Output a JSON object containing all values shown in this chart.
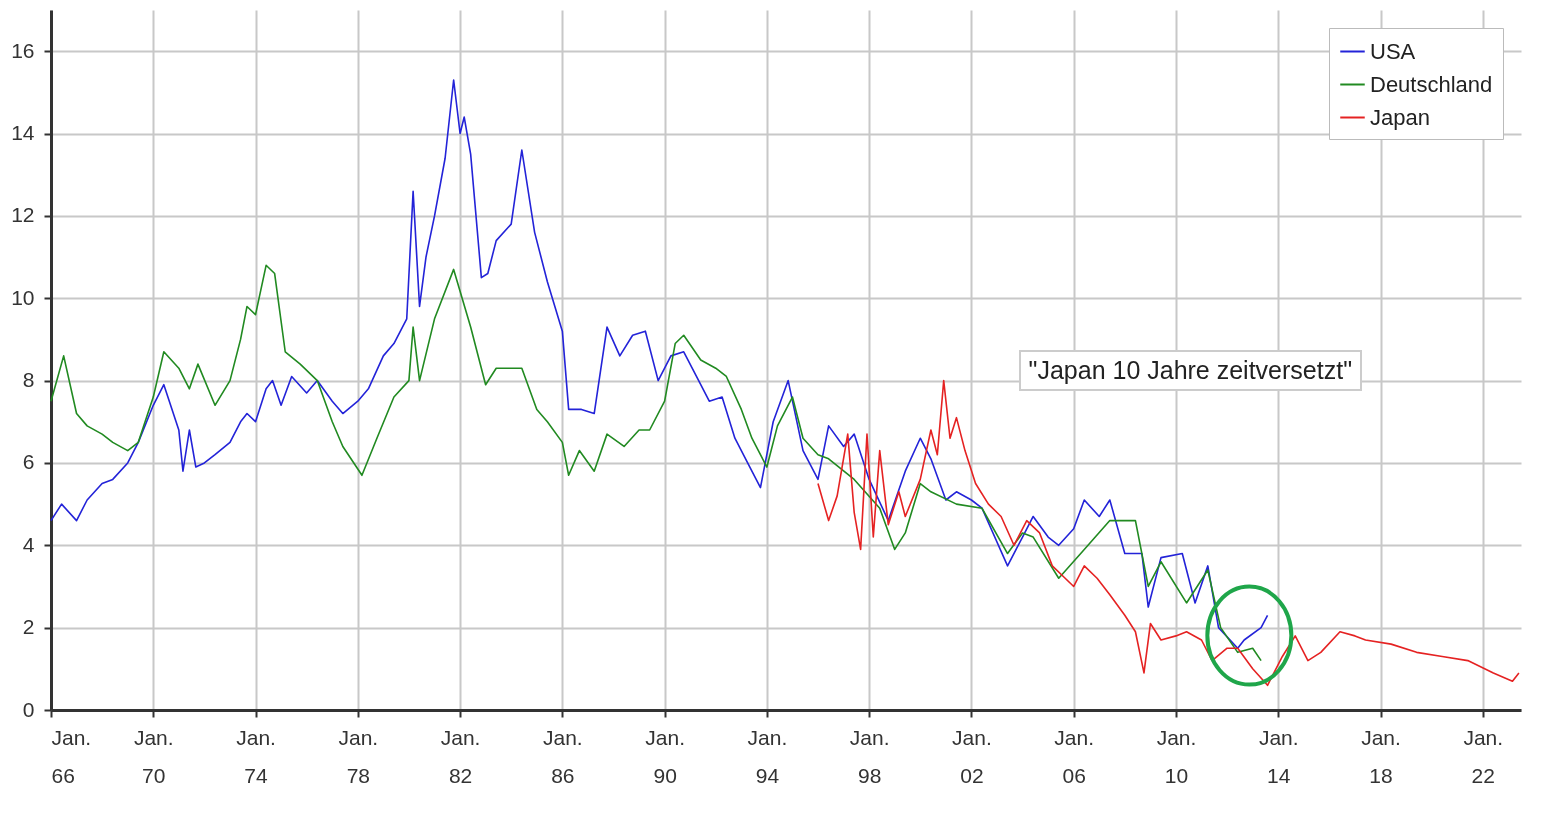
{
  "chart_data": {
    "type": "line",
    "annotations": [
      "\"Japan 10 Jahre zeitversetzt\""
    ],
    "xlim": [
      "1966-01",
      "2023-07"
    ],
    "xticks": [
      {
        "value": "1966-01",
        "label": "Jan. 66"
      },
      {
        "value": "1970-01",
        "label": "Jan. 70"
      },
      {
        "value": "1974-01",
        "label": "Jan. 74"
      },
      {
        "value": "1978-01",
        "label": "Jan. 78"
      },
      {
        "value": "1982-01",
        "label": "Jan. 82"
      },
      {
        "value": "1986-01",
        "label": "Jan. 86"
      },
      {
        "value": "1990-01",
        "label": "Jan. 90"
      },
      {
        "value": "1994-01",
        "label": "Jan. 94"
      },
      {
        "value": "1998-01",
        "label": "Jan. 98"
      },
      {
        "value": "2002-01",
        "label": "Jan. 02"
      },
      {
        "value": "2006-01",
        "label": "Jan. 06"
      },
      {
        "value": "2010-01",
        "label": "Jan. 10"
      },
      {
        "value": "2014-01",
        "label": "Jan. 14"
      },
      {
        "value": "2018-01",
        "label": "Jan. 18"
      },
      {
        "value": "2022-01",
        "label": "Jan. 22"
      }
    ],
    "ylim": [
      0,
      17
    ],
    "yticks": [
      0,
      2,
      4,
      6,
      8,
      10,
      12,
      14,
      16
    ],
    "grid": true,
    "legend": "top right",
    "line_style": "solid",
    "series": [
      {
        "name": "USA",
        "color": "#2323d8",
        "x": [
          "1966-01",
          "1966-06",
          "1967-01",
          "1967-06",
          "1968-01",
          "1968-06",
          "1969-01",
          "1969-06",
          "1970-01",
          "1970-06",
          "1971-01",
          "1971-03",
          "1971-06",
          "1971-09",
          "1972-01",
          "1972-06",
          "1973-01",
          "1973-06",
          "1973-09",
          "1974-01",
          "1974-06",
          "1974-09",
          "1975-01",
          "1975-06",
          "1976-01",
          "1976-06",
          "1977-01",
          "1977-06",
          "1978-01",
          "1978-06",
          "1979-01",
          "1979-06",
          "1979-12",
          "1980-03",
          "1980-06",
          "1980-09",
          "1981-01",
          "1981-06",
          "1981-10",
          "1982-01",
          "1982-03",
          "1982-06",
          "1982-11",
          "1983-02",
          "1983-06",
          "1984-01",
          "1984-06",
          "1984-12",
          "1985-06",
          "1986-01",
          "1986-04",
          "1986-10",
          "1987-04",
          "1987-10",
          "1988-04",
          "1988-10",
          "1989-04",
          "1989-10",
          "1990-04",
          "1990-10",
          "1991-04",
          "1991-10",
          "1992-04",
          "1992-10",
          "1993-04",
          "1993-10",
          "1994-04",
          "1994-11",
          "1995-06",
          "1996-01",
          "1996-06",
          "1997-01",
          "1997-06",
          "1998-01",
          "1998-10",
          "1999-06",
          "2000-01",
          "2000-06",
          "2001-01",
          "2001-06",
          "2002-01",
          "2002-06",
          "2003-06",
          "2004-01",
          "2004-06",
          "2005-01",
          "2005-06",
          "2006-01",
          "2006-06",
          "2007-01",
          "2007-06",
          "2008-01",
          "2008-09",
          "2008-12",
          "2009-06",
          "2010-04",
          "2010-10",
          "2011-04",
          "2011-09",
          "2012-06",
          "2012-09",
          "2013-05",
          "2013-08"
        ],
        "values": [
          4.6,
          5.0,
          4.6,
          5.1,
          5.5,
          5.6,
          6.0,
          6.5,
          7.4,
          7.9,
          6.8,
          5.8,
          6.8,
          5.9,
          6.0,
          6.2,
          6.5,
          7.0,
          7.2,
          7.0,
          7.8,
          8.0,
          7.4,
          8.1,
          7.7,
          8.0,
          7.5,
          7.2,
          7.5,
          7.8,
          8.6,
          8.9,
          9.5,
          12.6,
          9.8,
          11.0,
          12.0,
          13.4,
          15.3,
          14.0,
          14.4,
          13.5,
          10.5,
          10.6,
          11.4,
          11.8,
          13.6,
          11.6,
          10.4,
          9.2,
          7.3,
          7.3,
          7.2,
          9.3,
          8.6,
          9.1,
          9.2,
          8.0,
          8.6,
          8.7,
          8.1,
          7.5,
          7.6,
          6.6,
          6.0,
          5.4,
          7.0,
          8.0,
          6.3,
          5.6,
          6.9,
          6.4,
          6.7,
          5.6,
          4.6,
          5.8,
          6.6,
          6.1,
          5.1,
          5.3,
          5.1,
          4.9,
          3.5,
          4.2,
          4.7,
          4.2,
          4.0,
          4.4,
          5.1,
          4.7,
          5.1,
          3.8,
          3.8,
          2.5,
          3.7,
          3.8,
          2.6,
          3.5,
          2.0,
          1.5,
          1.7,
          2.0,
          2.3
        ]
      },
      {
        "name": "Deutschland",
        "color": "#218a21",
        "x": [
          "1966-01",
          "1966-07",
          "1967-01",
          "1967-06",
          "1968-01",
          "1968-06",
          "1969-01",
          "1969-06",
          "1970-01",
          "1970-06",
          "1971-01",
          "1971-06",
          "1971-10",
          "1972-06",
          "1973-01",
          "1973-06",
          "1973-09",
          "1974-01",
          "1974-06",
          "1974-10",
          "1975-03",
          "1975-10",
          "1976-06",
          "1977-01",
          "1977-06",
          "1978-03",
          "1978-10",
          "1979-06",
          "1980-01",
          "1980-03",
          "1980-06",
          "1981-01",
          "1981-10",
          "1982-06",
          "1983-01",
          "1983-06",
          "1984-06",
          "1985-01",
          "1985-06",
          "1986-01",
          "1986-04",
          "1986-09",
          "1987-04",
          "1987-10",
          "1988-06",
          "1989-01",
          "1989-06",
          "1990-01",
          "1990-06",
          "1990-10",
          "1991-06",
          "1992-01",
          "1992-06",
          "1993-01",
          "1993-06",
          "1994-01",
          "1994-06",
          "1995-01",
          "1995-06",
          "1996-01",
          "1996-06",
          "1997-06",
          "1998-06",
          "1999-01",
          "1999-06",
          "2000-01",
          "2000-06",
          "2001-06",
          "2002-06",
          "2003-06",
          "2004-01",
          "2004-06",
          "2005-06",
          "2006-06",
          "2007-06",
          "2008-06",
          "2008-12",
          "2009-06",
          "2010-06",
          "2011-04",
          "2011-10",
          "2012-06",
          "2013-01",
          "2013-05"
        ],
        "values": [
          7.5,
          8.6,
          7.2,
          6.9,
          6.7,
          6.5,
          6.3,
          6.5,
          7.6,
          8.7,
          8.3,
          7.8,
          8.4,
          7.4,
          8.0,
          9.0,
          9.8,
          9.6,
          10.8,
          10.6,
          8.7,
          8.4,
          8.0,
          7.0,
          6.4,
          5.7,
          6.6,
          7.6,
          8.0,
          9.3,
          8.0,
          9.5,
          10.7,
          9.3,
          7.9,
          8.3,
          8.3,
          7.3,
          7.0,
          6.5,
          5.7,
          6.3,
          5.8,
          6.7,
          6.4,
          6.8,
          6.8,
          7.5,
          8.9,
          9.1,
          8.5,
          8.3,
          8.1,
          7.3,
          6.6,
          5.9,
          6.9,
          7.6,
          6.6,
          6.2,
          6.1,
          5.6,
          4.9,
          3.9,
          4.3,
          5.5,
          5.3,
          5.0,
          4.9,
          3.8,
          4.3,
          4.2,
          3.2,
          3.9,
          4.6,
          4.6,
          3.0,
          3.6,
          2.6,
          3.4,
          2.0,
          1.4,
          1.5,
          1.2
        ]
      },
      {
        "name": "Japan",
        "color": "#e52222",
        "x": [
          "1996-01",
          "1996-06",
          "1996-10",
          "1997-03",
          "1997-06",
          "1997-09",
          "1997-12",
          "1998-03",
          "1998-06",
          "1998-10",
          "1999-03",
          "1999-06",
          "2000-01",
          "2000-06",
          "2000-09",
          "2000-12",
          "2001-03",
          "2001-06",
          "2001-10",
          "2002-03",
          "2002-09",
          "2003-03",
          "2003-09",
          "2004-03",
          "2004-09",
          "2005-03",
          "2005-09",
          "2006-01",
          "2006-06",
          "2006-12",
          "2007-06",
          "2008-01",
          "2008-06",
          "2008-10",
          "2009-01",
          "2009-06",
          "2010-01",
          "2010-06",
          "2011-01",
          "2011-06",
          "2012-01",
          "2012-06",
          "2013-01",
          "2013-08",
          "2014-03",
          "2014-09",
          "2015-03",
          "2015-09",
          "2016-06",
          "2017-01",
          "2017-06",
          "2018-06",
          "2019-06",
          "2020-06",
          "2021-06",
          "2022-06",
          "2023-03",
          "2023-06"
        ],
        "values": [
          5.5,
          4.6,
          5.2,
          6.7,
          4.8,
          3.9,
          6.7,
          4.2,
          6.3,
          4.5,
          5.3,
          4.7,
          5.6,
          6.8,
          6.2,
          8.0,
          6.6,
          7.1,
          6.3,
          5.5,
          5.0,
          4.7,
          4.0,
          4.6,
          4.3,
          3.5,
          3.2,
          3.0,
          3.5,
          3.2,
          2.8,
          2.3,
          1.9,
          0.9,
          2.1,
          1.7,
          1.8,
          1.9,
          1.7,
          1.2,
          1.5,
          1.5,
          1.0,
          0.6,
          1.3,
          1.8,
          1.2,
          1.4,
          1.9,
          1.8,
          1.7,
          1.6,
          1.4,
          1.3,
          1.2,
          0.9,
          0.7,
          0.9
        ]
      }
    ]
  }
}
